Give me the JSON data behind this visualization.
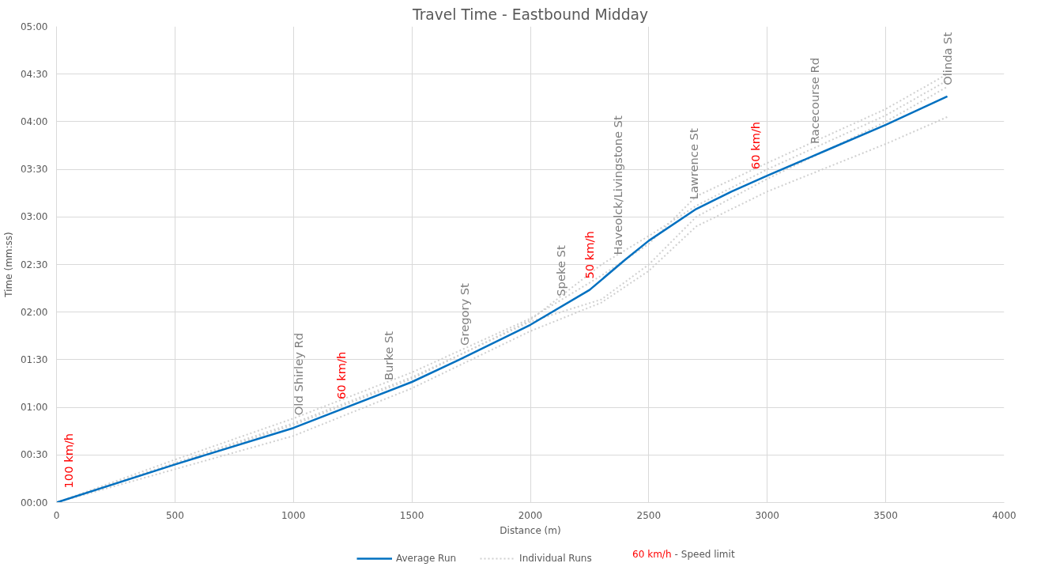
{
  "chart_data": {
    "type": "line",
    "title": "Travel Time - Eastbound Midday",
    "xlabel": "Distance (m)",
    "ylabel": "Time (mm:ss)",
    "xlim": [
      0,
      4000
    ],
    "xticks": [
      0,
      500,
      1000,
      1500,
      2000,
      2500,
      3000,
      3500,
      4000
    ],
    "ylim": [
      0,
      300
    ],
    "yticks": [
      {
        "value": 0,
        "label": "00:00"
      },
      {
        "value": 30,
        "label": "00:30"
      },
      {
        "value": 60,
        "label": "01:00"
      },
      {
        "value": 90,
        "label": "01:30"
      },
      {
        "value": 120,
        "label": "02:00"
      },
      {
        "value": 150,
        "label": "02:30"
      },
      {
        "value": 180,
        "label": "03:00"
      },
      {
        "value": 210,
        "label": "03:30"
      },
      {
        "value": 240,
        "label": "04:00"
      },
      {
        "value": 270,
        "label": "04:30"
      },
      {
        "value": 300,
        "label": "05:00"
      }
    ],
    "grid": true,
    "legend": "bottom",
    "marker": "none",
    "series": [
      {
        "name": "Individual Runs",
        "color": "#d0d0d0",
        "line_style": "dotted",
        "x": [
          0,
          500,
          1000,
          1500,
          2000,
          2300,
          2500,
          2700,
          3000,
          3500,
          3760
        ],
        "values": [
          0,
          27,
          53,
          82,
          116,
          143,
          163,
          193,
          214,
          248,
          270
        ]
      },
      {
        "color": "#d0d0d0",
        "line_style": "dotted",
        "x": [
          0,
          500,
          1000,
          1500,
          2000,
          2300,
          2500,
          2700,
          3000,
          3500,
          3760
        ],
        "values": [
          0,
          25,
          50,
          79,
          114,
          128,
          150,
          180,
          204,
          240,
          262
        ]
      },
      {
        "color": "#d0d0d0",
        "line_style": "dotted",
        "x": [
          0,
          500,
          1000,
          1500,
          2000,
          2300,
          2500,
          2700,
          3000,
          3500,
          3760
        ],
        "values": [
          0,
          21,
          42,
          72,
          108,
          126,
          146,
          174,
          196,
          226,
          243
        ]
      },
      {
        "color": "#d0d0d0",
        "line_style": "dotted",
        "x": [
          0,
          500,
          1000,
          1500,
          2000,
          2300,
          2500,
          2700,
          3000,
          3500,
          3760
        ],
        "values": [
          0,
          24,
          49,
          78,
          115,
          150,
          168,
          187,
          210,
          244,
          266
        ]
      },
      {
        "name": "Average Run",
        "color": "#0070c0",
        "line_style": "solid",
        "x": [
          0,
          500,
          1000,
          1500,
          1700,
          2000,
          2250,
          2400,
          2500,
          2700,
          2850,
          3000,
          3250,
          3500,
          3760
        ],
        "values": [
          0,
          24,
          47,
          76,
          90,
          112,
          134,
          153,
          165,
          185,
          196,
          206,
          222,
          238,
          256
        ]
      }
    ],
    "annotations": [
      {
        "text": "100 km/h",
        "x": 50,
        "y": 2
      },
      {
        "text": "Old Shirley Rd",
        "x": 1020,
        "y": 48
      },
      {
        "text": "60 km/h",
        "x": 1200,
        "y": 58
      },
      {
        "text": "Burke St",
        "x": 1400,
        "y": 70
      },
      {
        "text": "Gregory St",
        "x": 1720,
        "y": 92
      },
      {
        "text": "Speke St",
        "x": 2130,
        "y": 123
      },
      {
        "text": "50 km/h",
        "x": 2250,
        "y": 134
      },
      {
        "text": "Haveolck/Livingstone St",
        "x": 2370,
        "y": 149
      },
      {
        "text": "Lawrence St",
        "x": 2690,
        "y": 184
      },
      {
        "text": "60 km/h",
        "x": 2950,
        "y": 203
      },
      {
        "text": "Racecourse Rd",
        "x": 3200,
        "y": 219
      },
      {
        "text": "Olinda St",
        "x": 3760,
        "y": 256
      },
      "60 km/h",
      "- Speed limit"
    ]
  }
}
